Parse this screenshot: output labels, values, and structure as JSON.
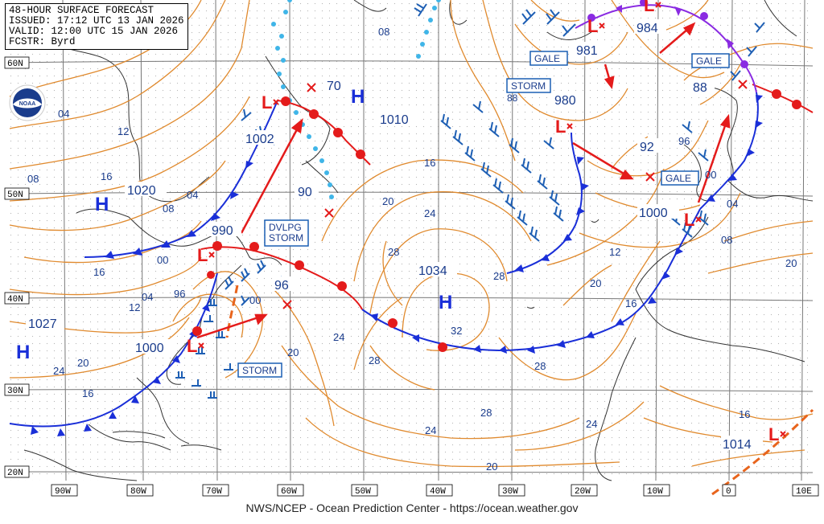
{
  "header": {
    "line1": "48-HOUR SURFACE FORECAST",
    "line2": "ISSUED: 17:12 UTC 13 JAN 2026",
    "line3": "VALID: 12:00 UTC 15 JAN 2026",
    "line4": "FCSTR: Byrd"
  },
  "footer": "NWS/NCEP - Ocean Prediction Center - https://ocean.weather.gov",
  "logo_text": "NOAA",
  "lon_labels": [
    "90W",
    "80W",
    "70W",
    "60W",
    "50W",
    "40W",
    "30W",
    "20W",
    "10W",
    "0",
    "10E"
  ],
  "lat_labels": [
    "60N",
    "50N",
    "40N",
    "30N",
    "20N"
  ],
  "pressure_centers": [
    {
      "type": "H",
      "value": "1020"
    },
    {
      "type": "H",
      "value": "1027"
    },
    {
      "type": "H",
      "value": "1034"
    },
    {
      "type": "H",
      "value": "70"
    },
    {
      "type": "L",
      "value": "1002"
    },
    {
      "type": "L",
      "value": "990"
    },
    {
      "type": "L",
      "value": "1000"
    },
    {
      "type": "L",
      "value": "980"
    },
    {
      "type": "L",
      "value": "981"
    },
    {
      "type": "L",
      "value": "984"
    },
    {
      "type": "L",
      "value": "88"
    },
    {
      "type": "L",
      "value": "1000"
    },
    {
      "type": "L",
      "value": "1014"
    }
  ],
  "isobar_labels": [
    "08",
    "04",
    "12",
    "16",
    "08",
    "04",
    "00",
    "16",
    "96",
    "12",
    "04",
    "20",
    "24",
    "16",
    "08",
    "90",
    "1010",
    "16",
    "20",
    "24",
    "28",
    "28",
    "32",
    "24",
    "20",
    "28",
    "24",
    "28",
    "24",
    "20",
    "88",
    "92",
    "96",
    "00",
    "04",
    "08",
    "12",
    "16",
    "20",
    "20",
    "16",
    "28",
    "96",
    "00"
  ],
  "warnings": [
    "GALE",
    "GALE",
    "GALE",
    "STORM",
    "DVLPG\nSTORM",
    "STORM"
  ]
}
